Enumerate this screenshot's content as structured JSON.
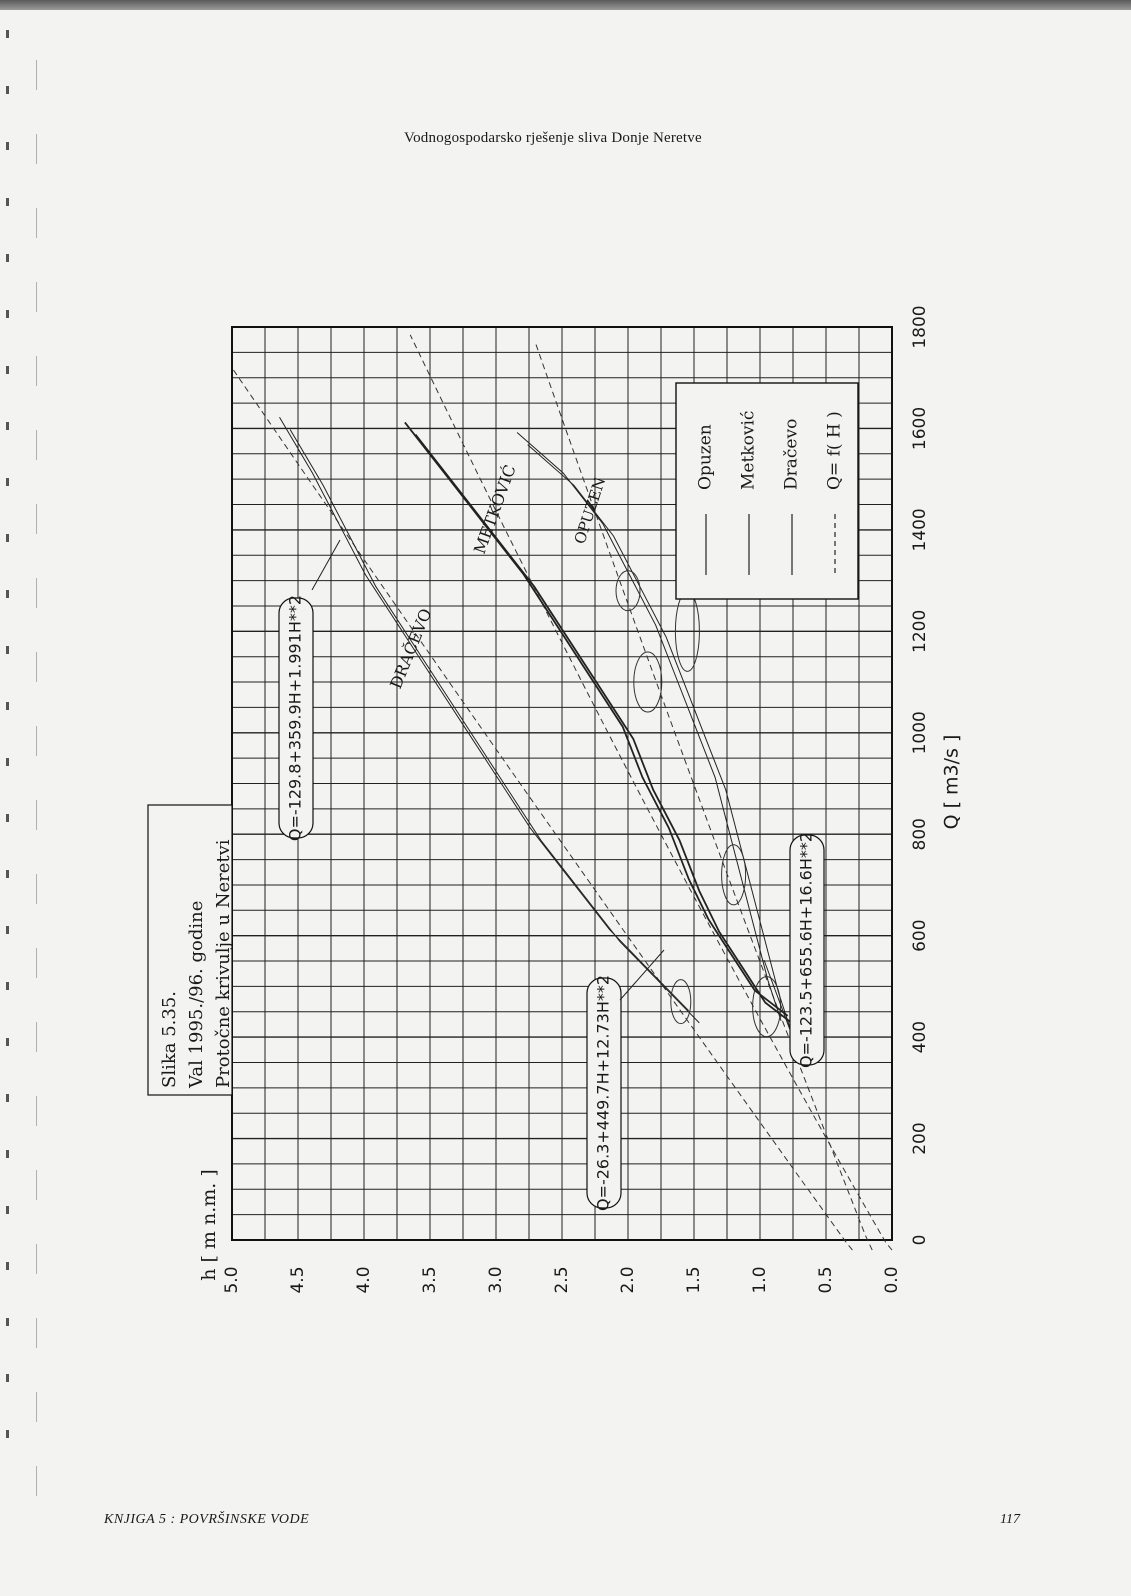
{
  "page": {
    "running_head": "Vodnogospodarsko rješenje sliva Donje Neretve",
    "footer_left": "KNJIGA 5 : POVRŠINSKE VODE",
    "page_number": "117"
  },
  "chart_data": {
    "type": "line",
    "caption": [
      "Slika 5.35.",
      "Val 1995./96. godine",
      "Protočne krivulje u Neretvi"
    ],
    "xlabel": "Q [ m3/s ]",
    "ylabel": "h [ m n.m. ]",
    "xlim": [
      0,
      1800
    ],
    "ylim": [
      0.0,
      5.0
    ],
    "xticks": [
      "0",
      "200",
      "400",
      "600",
      "800",
      "1000",
      "1200",
      "1400",
      "1600",
      "1800"
    ],
    "yticks": [
      "0.0",
      "0.5",
      "1.0",
      "1.5",
      "2.0",
      "2.5",
      "3.0",
      "3.5",
      "4.0",
      "4.5",
      "5.0"
    ],
    "grid": true,
    "legend_placement": "top-right",
    "legend": [
      {
        "label": "Opuzen",
        "style": "solid"
      },
      {
        "label": "Metković",
        "style": "solid"
      },
      {
        "label": "Dračevo",
        "style": "solid"
      },
      {
        "label": "Q= f( H )",
        "style": "dashed"
      }
    ],
    "series": [
      {
        "name": "Dračevo",
        "x": [
          440,
          520,
          600,
          700,
          800,
          900,
          1000,
          1100,
          1200,
          1300,
          1400,
          1500,
          1610
        ],
        "y": [
          1.5,
          1.8,
          2.1,
          2.4,
          2.7,
          2.95,
          3.2,
          3.45,
          3.7,
          3.95,
          4.15,
          4.35,
          4.6
        ]
      },
      {
        "name": "Metković",
        "x": [
          430,
          480,
          560,
          620,
          700,
          800,
          900,
          1000,
          1100,
          1200,
          1300,
          1400,
          1500,
          1600
        ],
        "y": [
          0.75,
          1.0,
          1.2,
          1.35,
          1.5,
          1.65,
          1.85,
          2.0,
          2.25,
          2.5,
          2.75,
          3.05,
          3.35,
          3.65
        ]
      },
      {
        "name": "Opuzen",
        "x": [
          420,
          500,
          600,
          700,
          800,
          900,
          1000,
          1100,
          1200,
          1300,
          1400,
          1500,
          1580
        ],
        "y": [
          0.8,
          0.9,
          1.0,
          1.1,
          1.2,
          1.3,
          1.45,
          1.6,
          1.75,
          1.95,
          2.15,
          2.45,
          2.8
        ]
      }
    ],
    "fitted_curves": [
      {
        "label": "Q=-129.8+359.9H+1.991H**2",
        "a": -129.8,
        "b": 359.9,
        "c": 1.991
      },
      {
        "label": "Q=-26.3+449.7H+12.73H**2",
        "a": -26.3,
        "b": 449.7,
        "c": 12.73
      },
      {
        "label": "Q=-123.5+655.6H+16.6H**2",
        "a": -123.5,
        "b": 655.6,
        "c": 16.6
      }
    ],
    "curve_labels": [
      "DRAČEVO",
      "METKOVIĆ",
      "OPUZEN"
    ]
  }
}
